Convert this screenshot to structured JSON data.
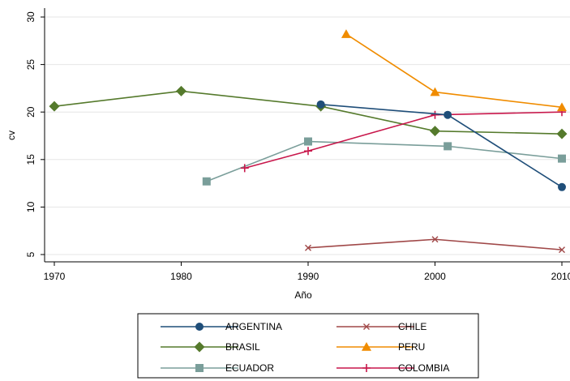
{
  "chart_data": {
    "type": "line",
    "xlabel": "Año",
    "ylabel": "cv",
    "xlim": [
      1970,
      2010
    ],
    "ylim": [
      5,
      30
    ],
    "x_ticks": [
      1970,
      1980,
      1990,
      2000,
      2010
    ],
    "y_ticks": [
      5,
      10,
      15,
      20,
      25,
      30
    ],
    "grid": "horizontal",
    "legend_position": "bottom",
    "series": [
      {
        "name": "ARGENTINA",
        "color": "#1f4e79",
        "marker": "circle",
        "x": [
          1991,
          2001,
          2010
        ],
        "y": [
          20.8,
          19.7,
          12.1
        ]
      },
      {
        "name": "CHILE",
        "color": "#a04848",
        "marker": "x",
        "x": [
          1990,
          2000,
          2010
        ],
        "y": [
          5.7,
          6.6,
          5.5
        ]
      },
      {
        "name": "BRASIL",
        "color": "#557a2c",
        "marker": "diamond",
        "x": [
          1970,
          1980,
          1991,
          2000,
          2010
        ],
        "y": [
          20.6,
          22.2,
          20.6,
          18.0,
          17.7
        ]
      },
      {
        "name": "PERU",
        "color": "#f08c00",
        "marker": "triangle",
        "x": [
          1993,
          2000,
          2010
        ],
        "y": [
          28.2,
          22.1,
          20.5
        ]
      },
      {
        "name": "ECUADOR",
        "color": "#7a9e9a",
        "marker": "square",
        "x": [
          1982,
          1990,
          2001,
          2010
        ],
        "y": [
          12.7,
          16.9,
          16.4,
          15.1
        ]
      },
      {
        "name": "COLOMBIA",
        "color": "#c8174b",
        "marker": "plus",
        "x": [
          1985,
          1990,
          2000,
          2010
        ],
        "y": [
          14.1,
          15.9,
          19.7,
          20.0
        ]
      }
    ]
  }
}
